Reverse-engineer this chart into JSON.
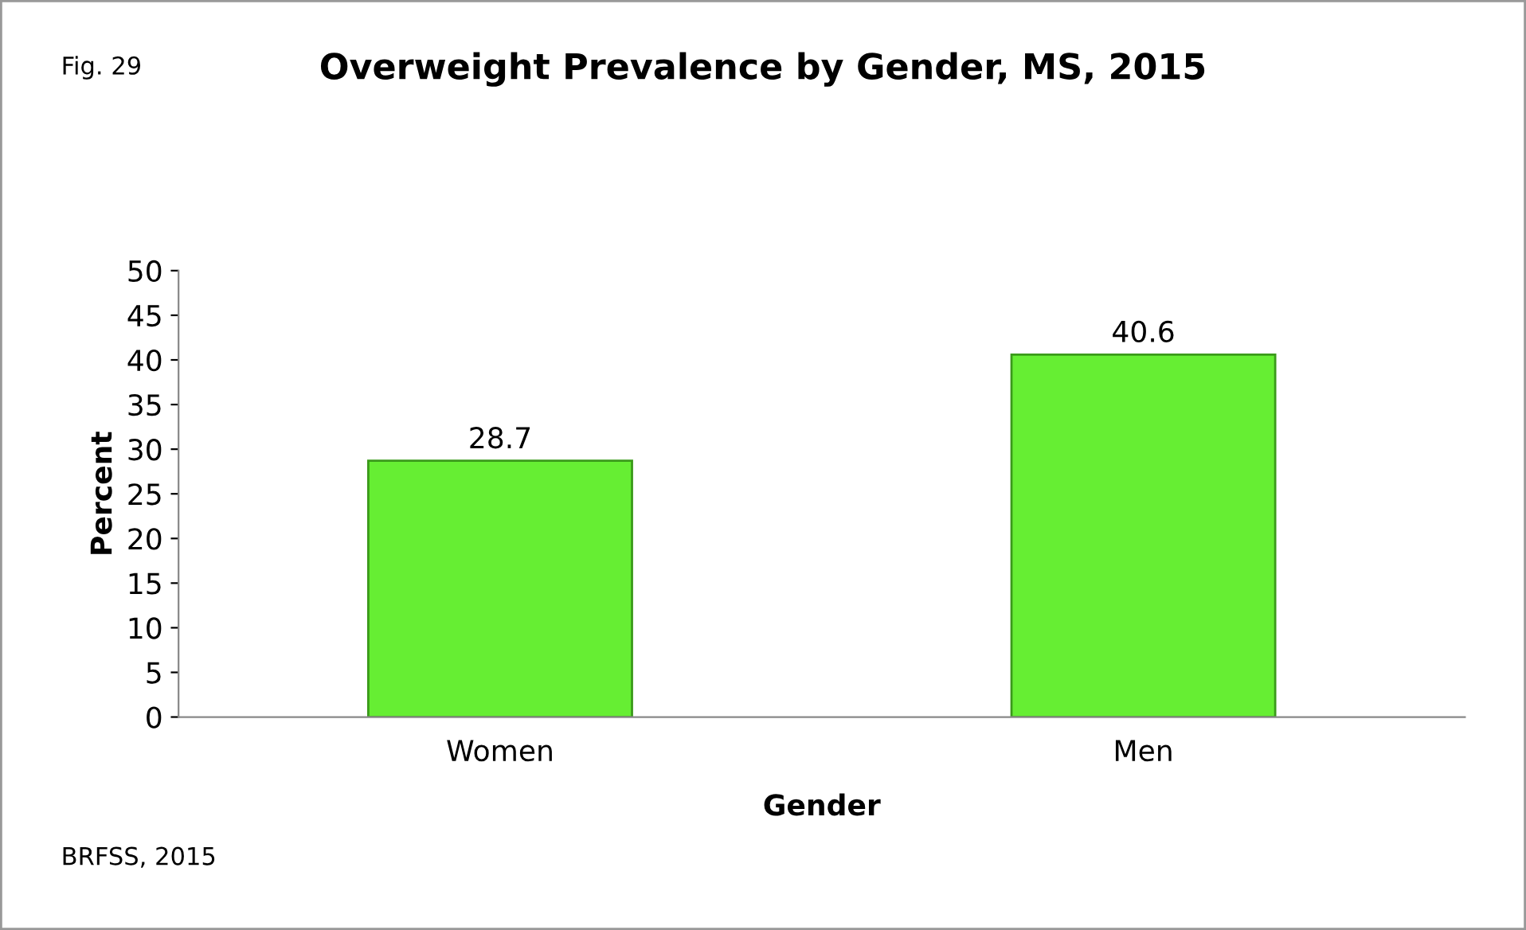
{
  "chart_data": {
    "type": "bar",
    "title": "Overweight Prevalence by Gender, MS, 2015",
    "xlabel": "Gender",
    "ylabel": "Percent",
    "annotations": [
      "Fig. 29",
      "BRFSS, 2015"
    ],
    "categories": [
      "Women",
      "Men"
    ],
    "values": [
      28.7,
      40.6
    ],
    "color": "#66ee33",
    "ylim": [
      0,
      50
    ],
    "yticks": [
      0,
      5,
      10,
      15,
      20,
      25,
      30,
      35,
      40,
      45,
      50
    ],
    "data_labels": true,
    "grid": false,
    "legend": false
  }
}
